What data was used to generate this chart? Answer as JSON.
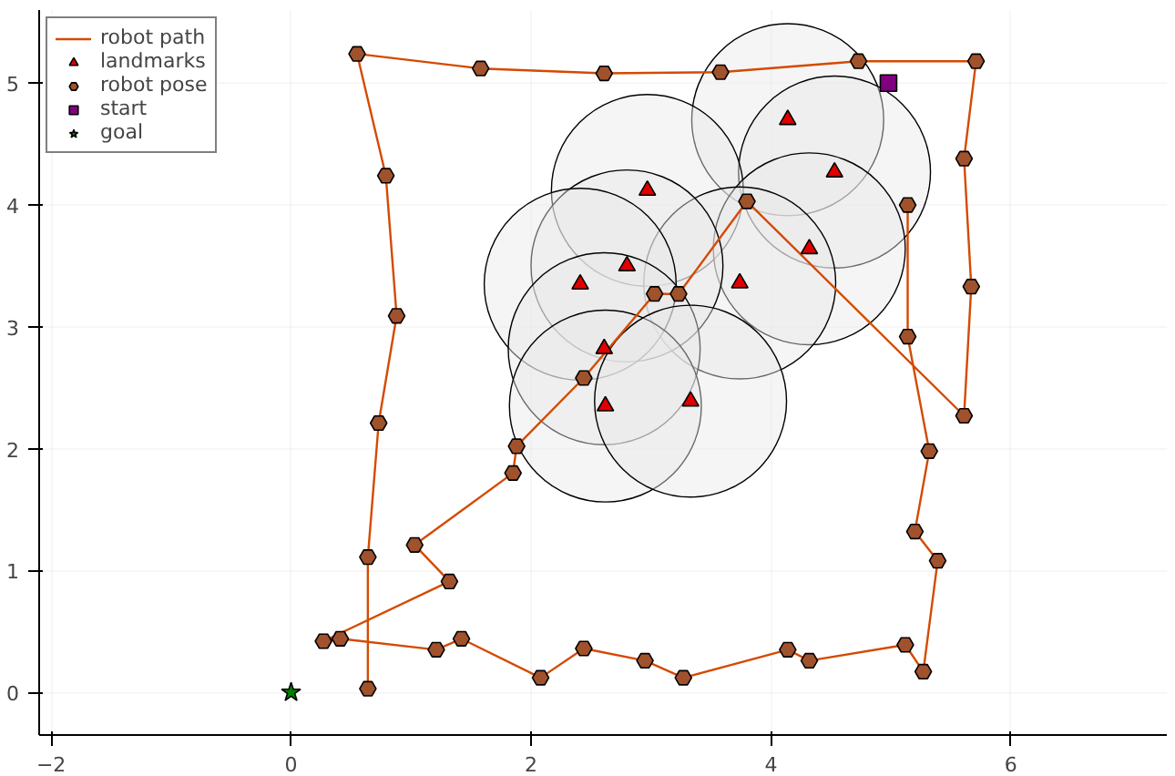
{
  "chart_data": {
    "type": "scatter",
    "xlim": [
      -2.1,
      7.3
    ],
    "ylim": [
      -0.35,
      5.6
    ],
    "xticks": [
      -2,
      0,
      2,
      4,
      6
    ],
    "yticks": [
      0,
      1,
      2,
      3,
      4,
      5
    ],
    "grid": true,
    "legend": "top left",
    "series": [
      {
        "type": "bubble",
        "color": "#e8e8e8",
        "x": [
          4.14,
          4.53,
          2.97,
          4.32,
          3.74,
          2.8,
          2.41,
          2.61,
          2.62,
          3.33
        ],
        "values": [
          4.7,
          4.27,
          4.12,
          3.64,
          3.36,
          3.5,
          3.35,
          2.82,
          2.35,
          2.39
        ],
        "sizes": [
          1,
          1,
          1,
          1,
          1,
          1,
          1,
          1,
          1,
          1
        ]
      },
      {
        "type": "line",
        "name": "robot path",
        "color": "#d44a00",
        "x": [
          5.14,
          5.14,
          5.32,
          5.2,
          5.39,
          5.27,
          5.12,
          4.32,
          4.14,
          3.27,
          2.95,
          2.44,
          2.08,
          1.42,
          1.21,
          0.41,
          0.27,
          1.32,
          1.03,
          1.85,
          1.88,
          2.44,
          3.03,
          3.23,
          3.8,
          5.61,
          5.67,
          5.61,
          5.71,
          4.73,
          3.58,
          2.61,
          1.58,
          0.55,
          0.79,
          0.88,
          0.73,
          0.64,
          0.64
        ],
        "values": [
          4.0,
          2.92,
          1.98,
          1.32,
          1.08,
          0.17,
          0.39,
          0.26,
          0.35,
          0.12,
          0.26,
          0.36,
          0.12,
          0.44,
          0.35,
          0.44,
          0.42,
          0.91,
          1.21,
          1.8,
          2.02,
          2.58,
          3.27,
          3.27,
          4.03,
          2.27,
          3.33,
          4.38,
          5.18,
          5.18,
          5.09,
          5.08,
          5.12,
          5.24,
          4.24,
          3.09,
          2.21,
          1.11,
          0.03
        ]
      },
      {
        "name": "landmarks",
        "color": "#e00000",
        "marker": "triangle",
        "x": [
          4.14,
          4.53,
          2.97,
          4.32,
          3.74,
          2.8,
          2.41,
          2.61,
          2.62,
          3.33
        ],
        "values": [
          4.7,
          4.27,
          4.12,
          3.64,
          3.36,
          3.5,
          3.35,
          2.82,
          2.35,
          2.39
        ]
      },
      {
        "name": "robot pose",
        "color": "#a0522d",
        "x": [
          5.14,
          5.14,
          5.32,
          5.2,
          5.39,
          5.27,
          5.12,
          4.32,
          4.14,
          3.27,
          2.95,
          2.44,
          2.08,
          1.42,
          1.21,
          0.41,
          0.27,
          1.32,
          1.03,
          1.85,
          1.88,
          2.44,
          3.03,
          3.23,
          3.8,
          5.61,
          5.67,
          5.61,
          5.71,
          4.73,
          3.58,
          2.61,
          1.58,
          0.55,
          0.79,
          0.88,
          0.73,
          0.64,
          0.64
        ],
        "values": [
          4.0,
          2.92,
          1.98,
          1.32,
          1.08,
          0.17,
          0.39,
          0.26,
          0.35,
          0.12,
          0.26,
          0.36,
          0.12,
          0.44,
          0.35,
          0.44,
          0.42,
          0.91,
          1.21,
          1.8,
          2.02,
          2.58,
          3.27,
          3.27,
          4.03,
          2.27,
          3.33,
          4.38,
          5.18,
          5.18,
          5.09,
          5.08,
          5.12,
          5.24,
          4.24,
          3.09,
          2.21,
          1.11,
          0.03
        ]
      },
      {
        "name": "start",
        "color": "#800080",
        "marker": "square",
        "x": [
          4.98
        ],
        "values": [
          5.0
        ]
      },
      {
        "name": "goal",
        "color": "#008000",
        "marker": "star",
        "x": [
          0
        ],
        "values": [
          0
        ]
      }
    ]
  }
}
